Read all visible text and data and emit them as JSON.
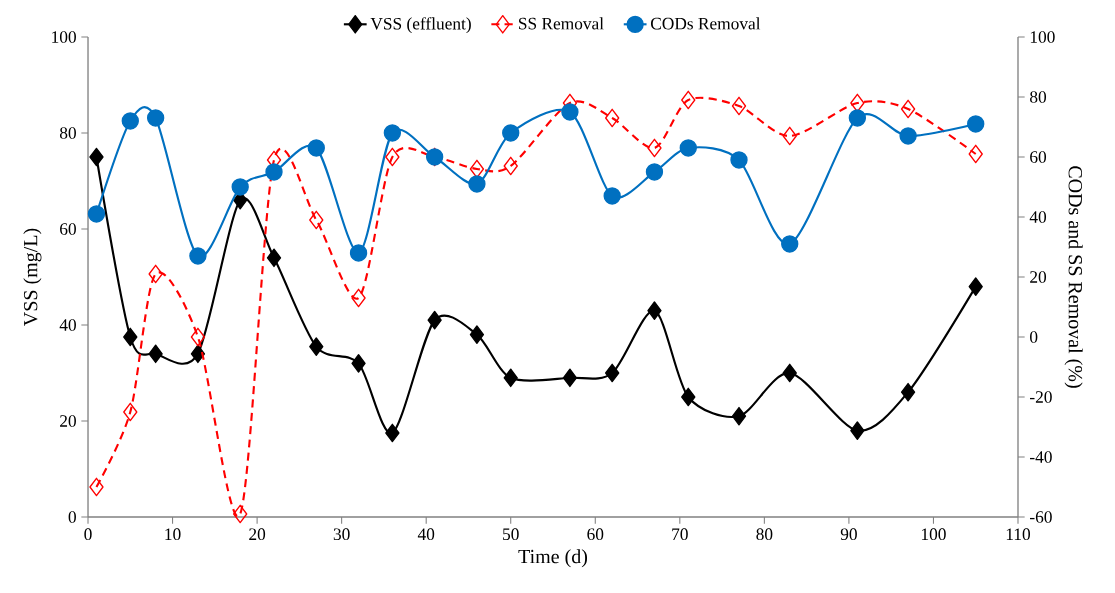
{
  "chart_data": {
    "type": "line",
    "xlabel": "Time (d)",
    "ylabel": "VSS (mg/L)",
    "y2label": "CODs and SS Removal (%)",
    "x": [
      1,
      5,
      8,
      13,
      18,
      22,
      27,
      32,
      36,
      41,
      46,
      50,
      57,
      62,
      67,
      71,
      77,
      83,
      91,
      97,
      105
    ],
    "series": [
      {
        "name": "VSS (effluent)",
        "color": "#000000",
        "marker": "diamond",
        "line_style": "solid",
        "values": [
          75,
          37.5,
          34,
          34,
          66,
          54,
          35.5,
          32,
          17.5,
          41,
          38,
          29,
          29,
          30,
          43,
          25,
          21,
          30,
          18,
          26,
          48
        ]
      },
      {
        "name": "SS Removal",
        "color": "#ff0000",
        "marker": "diamond",
        "line_style": "dashed",
        "axis": "y2",
        "values": [
          -50,
          -25,
          21,
          0,
          -59,
          59,
          39,
          13,
          60,
          60,
          56,
          57,
          78,
          73,
          63,
          79,
          77,
          67,
          78,
          76,
          61
        ]
      },
      {
        "name": "CODs Removal",
        "color": "#0070c0",
        "marker": "circle",
        "line_style": "solid",
        "axis": "y2",
        "values": [
          41,
          72,
          73,
          27,
          50,
          55,
          63,
          28,
          68,
          60,
          51,
          68,
          75,
          47,
          55,
          63,
          59,
          31,
          73,
          67,
          71
        ]
      }
    ],
    "xlim": [
      0,
      110
    ],
    "xticks": [
      0,
      10,
      20,
      30,
      40,
      50,
      60,
      70,
      80,
      90,
      100,
      110
    ],
    "ylim": [
      0,
      100
    ],
    "yticks": [
      0,
      20,
      40,
      60,
      80,
      100
    ],
    "y2lim": [
      -60,
      100
    ],
    "y2ticks": [
      -60,
      -40,
      -20,
      0,
      20,
      40,
      60,
      80,
      100
    ],
    "legend": "top"
  }
}
